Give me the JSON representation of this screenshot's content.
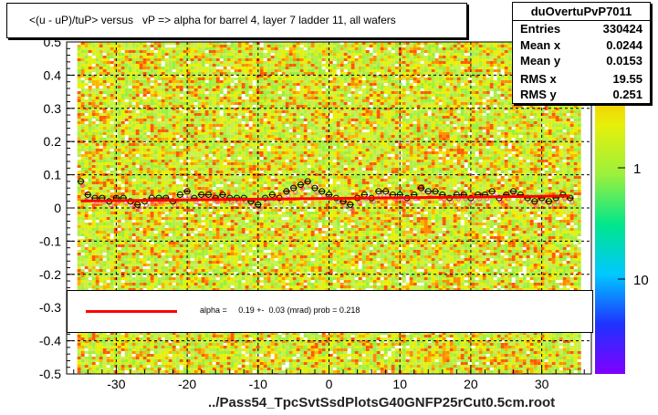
{
  "chart_data": {
    "type": "heatmap",
    "title": "<(u - uP)/tuP> versus   vP => alpha for barrel 4, layer 7 ladder 11, all wafers",
    "xlabel": "../Pass54_TpcSvtSsdPlotsG40GNFP25rCut0.5cm.root",
    "ylabel": "",
    "xlim": [
      -37,
      37
    ],
    "ylim": [
      -0.5,
      0.5
    ],
    "x_ticks": [
      "-30",
      "-20",
      "-10",
      "0",
      "10",
      "20",
      "30"
    ],
    "y_ticks": [
      "-0.5",
      "-0.4",
      "-0.3",
      "-0.2",
      "-0.1",
      "0",
      "0.1",
      "0.2",
      "0.3",
      "0.4",
      "0.5"
    ],
    "colorbar_ticks": [
      "1",
      "10"
    ],
    "grid": true,
    "profile_x": [
      -35,
      -34,
      -33,
      -32,
      -31,
      -30,
      -29,
      -28,
      -27,
      -26,
      -25,
      -24,
      -23,
      -22,
      -21,
      -20,
      -19,
      -18,
      -17,
      -16,
      -15,
      -14,
      -13,
      -12,
      -11,
      -10,
      -9,
      -8,
      -7,
      -6,
      -5,
      -4,
      -3,
      -2,
      -1,
      0,
      1,
      2,
      3,
      4,
      5,
      6,
      7,
      8,
      9,
      10,
      11,
      12,
      13,
      14,
      15,
      16,
      17,
      18,
      19,
      20,
      21,
      22,
      23,
      24,
      25,
      26,
      27,
      28,
      29,
      30,
      31,
      32,
      33,
      34
    ],
    "profile_y": [
      0.08,
      0.04,
      0.03,
      0.03,
      0.02,
      0.03,
      0.03,
      0.02,
      0.01,
      0.02,
      0.03,
      0.03,
      0.03,
      0.02,
      0.04,
      0.05,
      0.03,
      0.04,
      0.04,
      0.03,
      0.04,
      0.03,
      0.03,
      0.03,
      0.02,
      0.01,
      0.03,
      0.04,
      0.03,
      0.05,
      0.06,
      0.07,
      0.08,
      0.06,
      0.05,
      0.04,
      0.03,
      0.02,
      0.01,
      0.03,
      0.04,
      0.03,
      0.05,
      0.05,
      0.04,
      0.04,
      0.03,
      0.04,
      0.06,
      0.05,
      0.05,
      0.04,
      0.03,
      0.04,
      0.04,
      0.03,
      0.04,
      0.04,
      0.05,
      0.03,
      0.04,
      0.05,
      0.04,
      0.03,
      0.02,
      0.03,
      0.02,
      0.03,
      0.04,
      0.03
    ],
    "fit": {
      "alpha": 0.19,
      "alpha_err": 0.03,
      "prob": 0.218,
      "y_at_min": 0.021,
      "y_at_max": 0.036
    },
    "stats": {
      "name": "duOvertuPvP7011",
      "rows": [
        {
          "label": "Entries",
          "value": "330424"
        },
        {
          "label": "Mean x",
          "value": "0.0244"
        },
        {
          "label": "Mean y",
          "value": "0.0153"
        },
        {
          "label": "RMS x",
          "value": "19.55"
        },
        {
          "label": "RMS y",
          "value": "0.251"
        }
      ]
    },
    "legend_text": "alpha =     0.19 +-  0.03 (mrad) prob = 0.218",
    "colors": {
      "fit_line": "#ff0000",
      "markers": "#000000",
      "pink_markers": "#ff55cc"
    }
  }
}
